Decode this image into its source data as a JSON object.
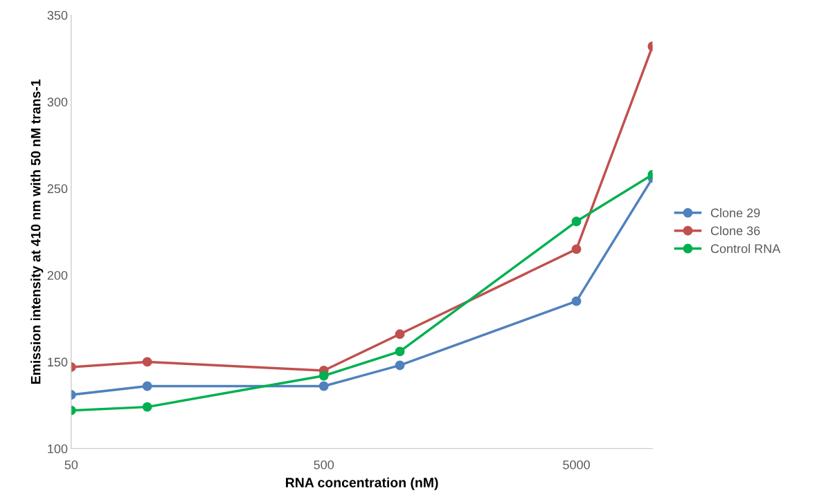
{
  "chart_data": {
    "type": "line",
    "xlabel": "RNA concentration (nM)",
    "ylabel": "Emission intensity at 410 nm with 50 nM trans-1",
    "log": "x",
    "x": [
      50,
      100,
      500,
      1000,
      5000,
      10000
    ],
    "series": [
      {
        "name": "Clone 29",
        "color": "#4f81bd",
        "values": [
          131,
          136,
          136,
          148,
          185,
          256
        ]
      },
      {
        "name": "Clone 36",
        "color": "#c0504d",
        "values": [
          147,
          150,
          145,
          166,
          215,
          332
        ]
      },
      {
        "name": "Control RNA",
        "color": "#00b050",
        "values": [
          122,
          124,
          142,
          156,
          231,
          258
        ]
      }
    ],
    "xlim": [
      50,
      10000
    ],
    "xticks": [
      50,
      500,
      5000
    ],
    "ylim": [
      100,
      350
    ],
    "yticks": [
      100,
      150,
      200,
      250,
      300,
      350
    ],
    "grid": false,
    "legend": "right",
    "marker": "circle",
    "line_style": "solid"
  }
}
